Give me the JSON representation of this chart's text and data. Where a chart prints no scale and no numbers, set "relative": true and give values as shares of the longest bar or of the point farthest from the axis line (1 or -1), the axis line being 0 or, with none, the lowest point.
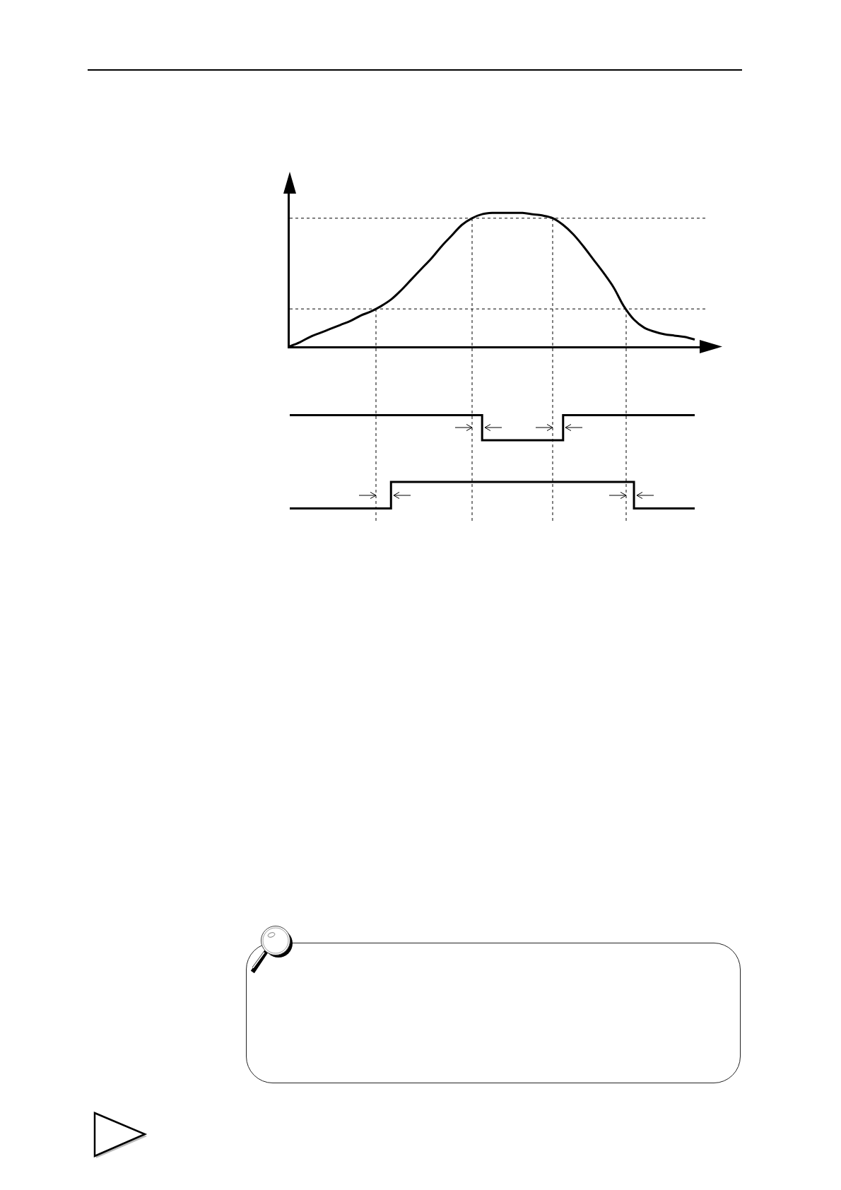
{
  "chart_data": [
    {
      "type": "line",
      "relative": true,
      "categories": [
        null,
        null,
        null,
        null,
        null,
        null,
        null,
        null,
        null,
        null,
        null,
        null,
        null,
        null,
        null,
        null,
        null,
        null,
        null,
        null,
        null,
        null,
        null,
        null,
        null,
        null,
        null,
        null,
        null,
        null,
        null,
        null,
        null,
        null,
        null,
        null,
        null,
        null,
        null,
        null,
        null
      ],
      "values": [
        0,
        0.03,
        0.07,
        0.1,
        0.13,
        0.16,
        0.19,
        0.23,
        0.26,
        0.3,
        0.35,
        0.42,
        0.5,
        0.58,
        0.66,
        0.75,
        0.83,
        0.91,
        0.96,
        0.99,
        1,
        1,
        1,
        1,
        0.99,
        0.98,
        0.96,
        0.91,
        0.84,
        0.75,
        0.65,
        0.55,
        0.44,
        0.3,
        0.2,
        0.14,
        0.11,
        0.09,
        0.08,
        0.07,
        0.05
      ],
      "color": "#000000",
      "ref_lines": [
        {
          "axis": "y",
          "value": 0.96,
          "color": "#000000",
          "line_style": "dashed"
        },
        {
          "axis": "y",
          "value": 0.28,
          "color": "#000000",
          "line_style": "dashed"
        }
      ]
    },
    {
      "type": "step",
      "relative": true,
      "categories": [
        null,
        null,
        null,
        null,
        null,
        null,
        null,
        null,
        null,
        null,
        null,
        null,
        null,
        null,
        null,
        null,
        null,
        null,
        null,
        null,
        null,
        null,
        null,
        null,
        null,
        null,
        null,
        null,
        null,
        null,
        null,
        null,
        null,
        null,
        null,
        null,
        null,
        null,
        null,
        null,
        null
      ],
      "values": [
        1,
        1,
        1,
        1,
        1,
        1,
        1,
        1,
        1,
        1,
        1,
        1,
        1,
        1,
        1,
        1,
        1,
        1,
        1,
        0,
        0,
        0,
        0,
        0,
        0,
        0,
        0,
        1,
        1,
        1,
        1,
        1,
        1,
        1,
        1,
        1,
        1,
        1,
        1,
        1,
        1
      ],
      "color": "#000000"
    },
    {
      "type": "step",
      "relative": true,
      "categories": [
        null,
        null,
        null,
        null,
        null,
        null,
        null,
        null,
        null,
        null,
        null,
        null,
        null,
        null,
        null,
        null,
        null,
        null,
        null,
        null,
        null,
        null,
        null,
        null,
        null,
        null,
        null,
        null,
        null,
        null,
        null,
        null,
        null,
        null,
        null,
        null,
        null,
        null,
        null,
        null,
        null
      ],
      "values": [
        0,
        0,
        0,
        0,
        0,
        0,
        0,
        0,
        0,
        0,
        1,
        1,
        1,
        1,
        1,
        1,
        1,
        1,
        1,
        1,
        1,
        1,
        1,
        1,
        1,
        1,
        1,
        1,
        1,
        1,
        1,
        1,
        1,
        1,
        0,
        0,
        0,
        0,
        0,
        0,
        0
      ],
      "color": "#000000"
    }
  ]
}
